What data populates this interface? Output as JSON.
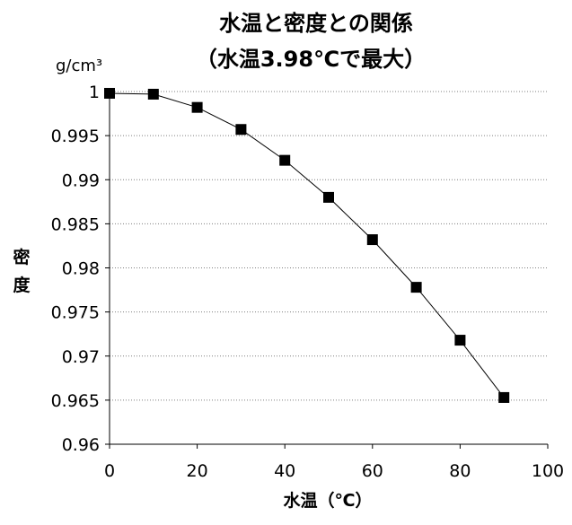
{
  "chart_data": {
    "type": "line",
    "title_line1": "水温と密度との関係",
    "title_line2": "（水温3.98℃で最大）",
    "xlabel": "水温（℃）",
    "ylabel_chars": [
      "密",
      "度"
    ],
    "y_unit": "g/cm³",
    "xlim": [
      0,
      100
    ],
    "ylim": [
      0.96,
      1
    ],
    "x_ticks": [
      0,
      20,
      40,
      60,
      80,
      100
    ],
    "y_ticks": [
      0.96,
      0.965,
      0.97,
      0.975,
      0.98,
      0.985,
      0.99,
      0.995,
      1
    ],
    "y_tick_labels": [
      "0.96",
      "0.965",
      "0.97",
      "0.975",
      "0.98",
      "0.985",
      "0.99",
      "0.995",
      "1"
    ],
    "grid": "horizontal dotted",
    "marker": "square",
    "series": [
      {
        "x": [
          0,
          10,
          20,
          30,
          40,
          50,
          60,
          70,
          80,
          90
        ],
        "values": [
          0.9998,
          0.9997,
          0.9982,
          0.9957,
          0.9922,
          0.988,
          0.9832,
          0.9778,
          0.9718,
          0.9653
        ]
      }
    ]
  },
  "colors": {
    "line": "#000000",
    "marker": "#000000",
    "grid": "#7f7f7f",
    "axis": "#000000"
  }
}
